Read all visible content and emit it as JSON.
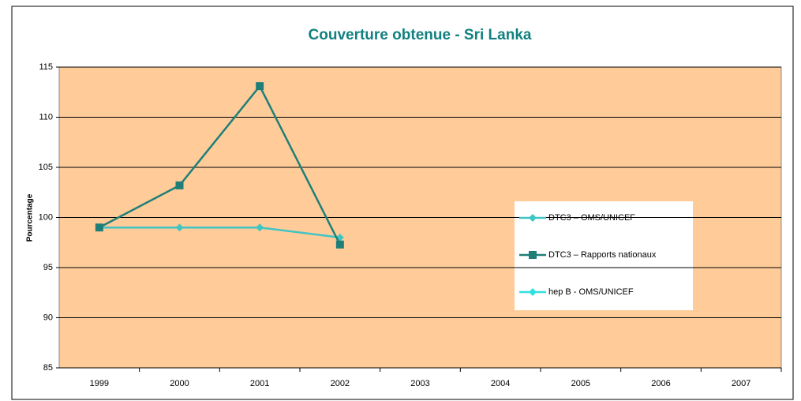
{
  "chart_data": {
    "type": "line",
    "title": "Couverture obtenue - Sri Lanka",
    "y_label": "Pourcentage",
    "categories": [
      "1999",
      "2000",
      "2001",
      "2002",
      "2003",
      "2004",
      "2005",
      "2006",
      "2007"
    ],
    "series": [
      {
        "name": "DTC3 – OMS/UNICEF",
        "color": "#40c4c4",
        "marker": "diamond",
        "values": [
          99,
          99,
          99,
          98,
          null,
          null,
          null,
          null,
          null
        ]
      },
      {
        "name": "DTC3 – Rapports nationaux",
        "color": "#1f7f78",
        "marker": "square",
        "values": [
          99,
          103.2,
          113.1,
          97.3,
          null,
          null,
          null,
          null,
          null
        ]
      },
      {
        "name": "hep B - OMS/UNICEF",
        "color": "#33e0e0",
        "marker": "diamond",
        "values": [
          null,
          null,
          null,
          null,
          null,
          null,
          null,
          null,
          null
        ]
      }
    ],
    "ylim": [
      85,
      115
    ],
    "yticks": [
      85,
      90,
      95,
      100,
      105,
      110,
      115
    ],
    "grid": true,
    "legend": "right"
  }
}
